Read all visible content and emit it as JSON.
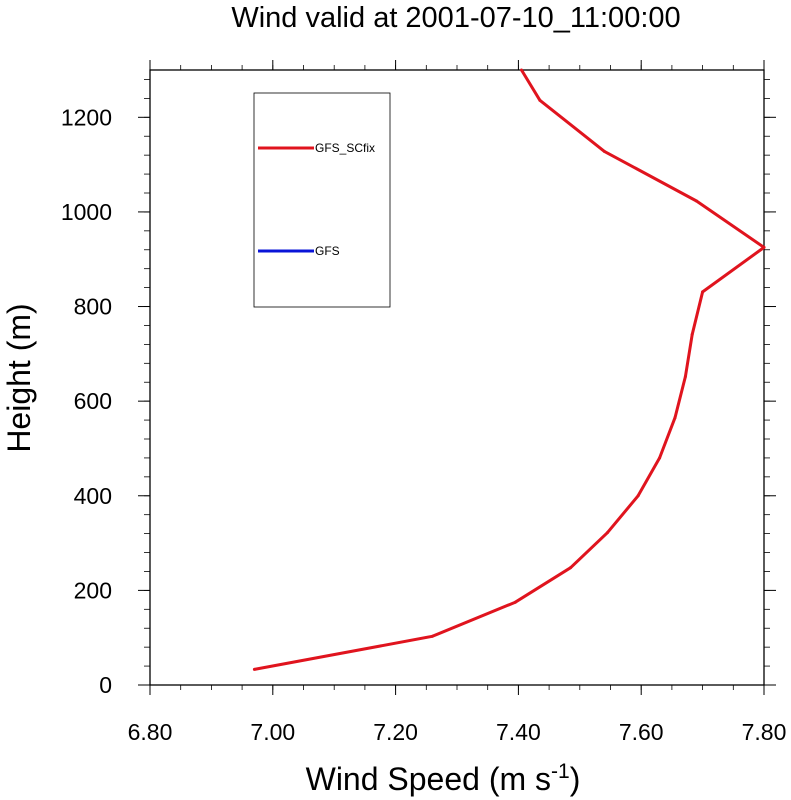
{
  "chart_data": {
    "type": "line",
    "title": "Wind valid at 2001-07-10_11:00:00",
    "xlabel": "Wind Speed (m s",
    "xlabel_sup": "-1",
    "xlabel_close": ")",
    "ylabel": "Height (m)",
    "xlim": [
      6.8,
      7.8
    ],
    "ylim": [
      0,
      1300
    ],
    "xticks": [
      6.8,
      7.0,
      7.2,
      7.4,
      7.6,
      7.8
    ],
    "xtick_labels": [
      "6.80",
      "7.00",
      "7.20",
      "7.40",
      "7.60",
      "7.80"
    ],
    "yticks": [
      0,
      200,
      400,
      600,
      800,
      1000,
      1200
    ],
    "ytick_labels": [
      "0",
      "200",
      "400",
      "600",
      "800",
      "1000",
      "1200"
    ],
    "legend_placement": "upper-left inside",
    "series": [
      {
        "name": "GFS_SCfix",
        "color": "#e0141e",
        "points": [
          {
            "x": 6.97,
            "y": 33
          },
          {
            "x": 7.26,
            "y": 103
          },
          {
            "x": 7.395,
            "y": 175
          },
          {
            "x": 7.485,
            "y": 248
          },
          {
            "x": 7.545,
            "y": 322
          },
          {
            "x": 7.595,
            "y": 400
          },
          {
            "x": 7.63,
            "y": 480
          },
          {
            "x": 7.655,
            "y": 565
          },
          {
            "x": 7.672,
            "y": 652
          },
          {
            "x": 7.683,
            "y": 741
          },
          {
            "x": 7.7,
            "y": 831
          },
          {
            "x": 7.8,
            "y": 925
          },
          {
            "x": 7.69,
            "y": 1023
          },
          {
            "x": 7.54,
            "y": 1128
          },
          {
            "x": 7.435,
            "y": 1236
          },
          {
            "x": 7.405,
            "y": 1300
          }
        ]
      },
      {
        "name": "GFS",
        "color": "#0a14d8",
        "points": []
      }
    ]
  }
}
